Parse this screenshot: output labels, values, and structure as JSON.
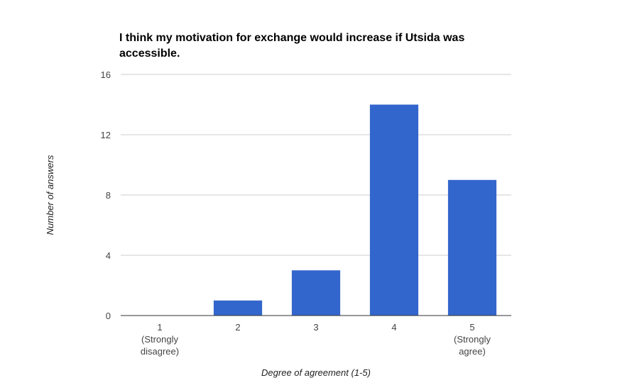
{
  "chart_data": {
    "type": "bar",
    "title": "I think my motivation for exchange would increase if Utsida was accessible.",
    "xlabel": "Degree of agreement (1-5)",
    "ylabel": "Number of answers",
    "categories": [
      [
        "1",
        "(Strongly",
        "disagree)"
      ],
      [
        "2"
      ],
      [
        "3"
      ],
      [
        "4"
      ],
      [
        "5",
        "(Strongly",
        "agree)"
      ]
    ],
    "values": [
      0,
      1,
      3,
      14,
      9
    ],
    "ylim": [
      0,
      16
    ],
    "yticks": [
      "0",
      "4",
      "8",
      "12",
      "16"
    ],
    "grid": true,
    "legend": "none",
    "bar_color": "#3366cc",
    "grid_color": "#cccccc",
    "axis_color": "#333333"
  }
}
